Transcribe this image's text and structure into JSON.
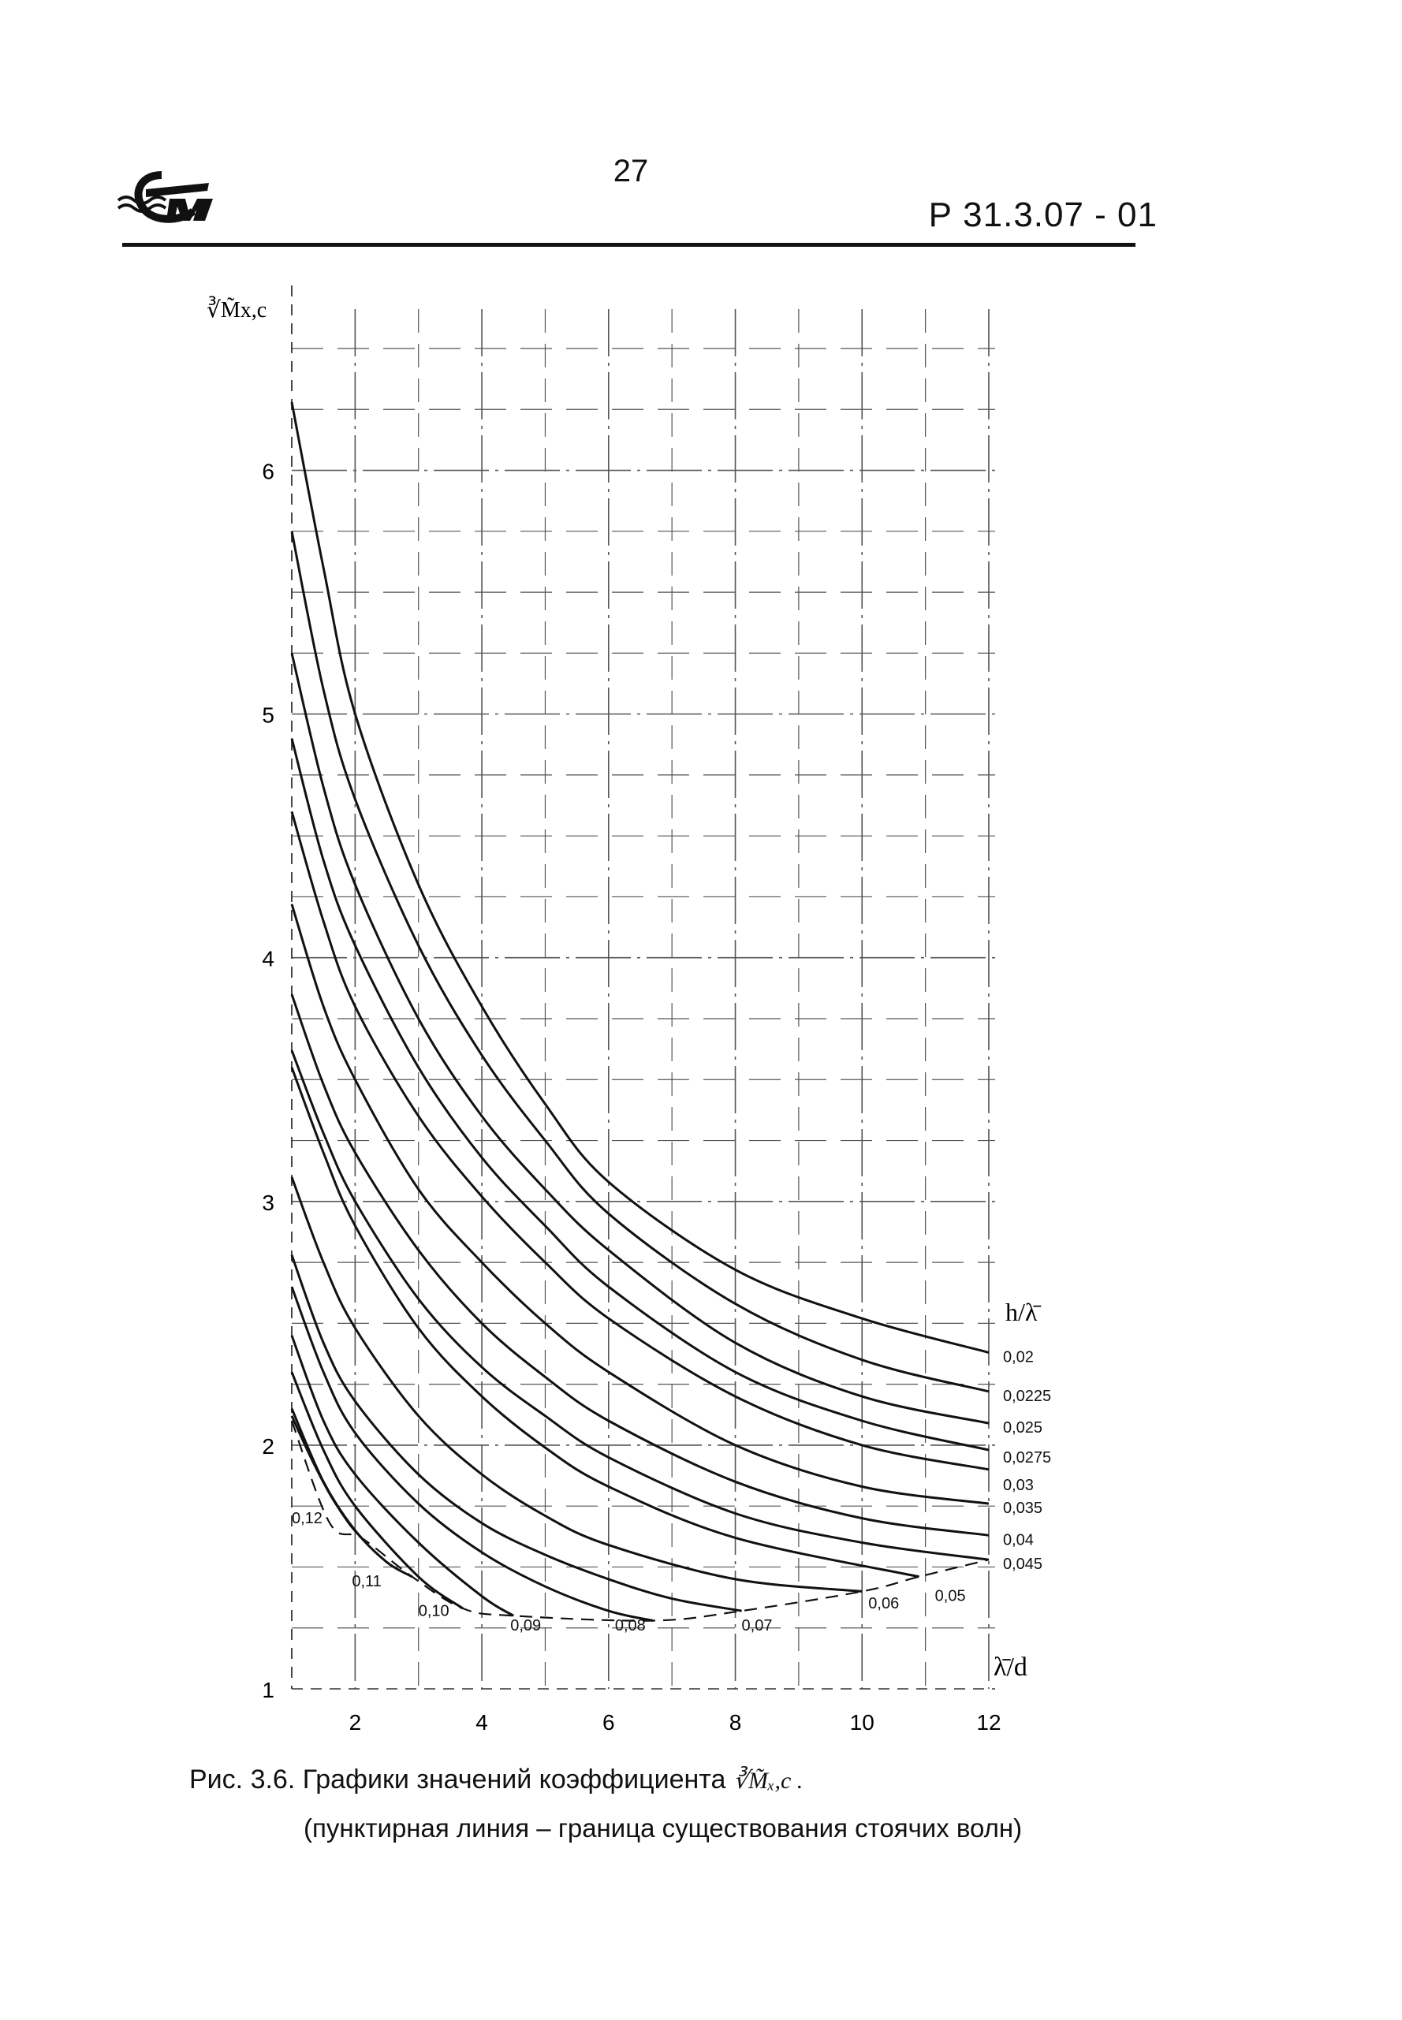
{
  "header": {
    "page_number": "27",
    "doc_code": "Р  31.3.07 - 01",
    "logo_icon": "organization-logo-icon"
  },
  "caption": {
    "line1": "Рис. 3.6. Графики значений коэффициента",
    "line1_math": "∛M̃ₓ,c .",
    "line2": "(пунктирная линия – граница существования стоячих волн)"
  },
  "chart_data": {
    "type": "line",
    "ylabel": "∛M̃x,c",
    "xlabel": "λ̄/d",
    "legend_title": "h/λ̄",
    "xlim": [
      1,
      12.1
    ],
    "ylim": [
      1,
      6.5
    ],
    "xticks": [
      2,
      4,
      6,
      8,
      10,
      12
    ],
    "yticks": [
      1,
      2,
      3,
      4,
      5,
      6
    ],
    "grid": true,
    "series": [
      {
        "name": "0,02",
        "x": [
          1,
          1.5,
          2,
          3,
          4,
          5,
          6,
          8,
          10,
          12
        ],
        "y": [
          6.28,
          5.6,
          5.0,
          4.3,
          3.8,
          3.4,
          3.08,
          2.72,
          2.52,
          2.38
        ]
      },
      {
        "name": "0,0225",
        "x": [
          1,
          1.5,
          2,
          3,
          4,
          5,
          6,
          8,
          10,
          12
        ],
        "y": [
          5.75,
          5.1,
          4.65,
          4.05,
          3.6,
          3.25,
          2.95,
          2.58,
          2.35,
          2.22
        ]
      },
      {
        "name": "0,025",
        "x": [
          1,
          1.5,
          2,
          3,
          4,
          5,
          6,
          8,
          10,
          12
        ],
        "y": [
          5.25,
          4.7,
          4.3,
          3.75,
          3.35,
          3.05,
          2.8,
          2.42,
          2.2,
          2.09
        ]
      },
      {
        "name": "0,0275",
        "x": [
          1,
          1.5,
          2,
          3,
          4,
          5,
          6,
          8,
          10,
          12
        ],
        "y": [
          4.9,
          4.4,
          4.05,
          3.55,
          3.18,
          2.9,
          2.65,
          2.3,
          2.1,
          1.98
        ]
      },
      {
        "name": "0,03",
        "x": [
          1,
          1.5,
          2,
          3,
          4,
          5,
          6,
          8,
          10,
          12
        ],
        "y": [
          4.6,
          4.15,
          3.8,
          3.35,
          3.02,
          2.75,
          2.52,
          2.2,
          2.0,
          1.9
        ]
      },
      {
        "name": "0,035",
        "x": [
          1,
          1.5,
          2,
          3,
          4,
          5,
          6,
          8,
          10,
          12
        ],
        "y": [
          4.22,
          3.8,
          3.5,
          3.05,
          2.75,
          2.5,
          2.3,
          2.0,
          1.83,
          1.76
        ]
      },
      {
        "name": "0,04",
        "x": [
          1,
          1.5,
          2,
          3,
          4,
          5,
          6,
          8,
          10,
          12
        ],
        "y": [
          3.85,
          3.48,
          3.2,
          2.8,
          2.5,
          2.28,
          2.1,
          1.85,
          1.7,
          1.63
        ]
      },
      {
        "name": "0,045",
        "x": [
          1,
          1.5,
          2,
          3,
          4,
          5,
          6,
          8,
          10,
          12
        ],
        "y": [
          3.62,
          3.28,
          3.0,
          2.6,
          2.32,
          2.12,
          1.95,
          1.72,
          1.6,
          1.53
        ]
      },
      {
        "name": "0,05",
        "x": [
          1,
          1.5,
          2,
          3,
          4,
          5,
          6,
          8,
          10.9
        ],
        "y": [
          3.55,
          3.2,
          2.9,
          2.48,
          2.2,
          1.99,
          1.83,
          1.62,
          1.46
        ]
      },
      {
        "name": "0,06",
        "x": [
          1,
          1.5,
          2,
          3,
          4,
          5,
          6,
          8,
          10
        ],
        "y": [
          3.1,
          2.75,
          2.48,
          2.12,
          1.88,
          1.71,
          1.59,
          1.45,
          1.4
        ]
      },
      {
        "name": "0,07",
        "x": [
          1,
          1.5,
          2,
          3,
          4,
          5,
          6,
          7,
          8.1
        ],
        "y": [
          2.78,
          2.42,
          2.18,
          1.88,
          1.68,
          1.55,
          1.45,
          1.37,
          1.32
        ]
      },
      {
        "name": "0,08",
        "x": [
          1,
          1.5,
          2,
          3,
          4,
          5,
          6,
          6.7
        ],
        "y": [
          2.65,
          2.3,
          2.05,
          1.76,
          1.56,
          1.42,
          1.32,
          1.28
        ]
      },
      {
        "name": "0,09",
        "x": [
          1,
          1.5,
          2,
          3,
          4,
          4.5
        ],
        "y": [
          2.45,
          2.1,
          1.88,
          1.6,
          1.38,
          1.3
        ]
      },
      {
        "name": "0,10",
        "x": [
          1,
          1.5,
          2,
          3,
          3.7
        ],
        "y": [
          2.3,
          1.98,
          1.75,
          1.46,
          1.33
        ]
      },
      {
        "name": "0,11",
        "x": [
          1,
          1.5,
          2,
          2.5,
          2.9
        ],
        "y": [
          2.15,
          1.85,
          1.65,
          1.52,
          1.46
        ]
      },
      {
        "name": "0,12",
        "x": [
          1,
          1.3,
          1.6,
          1.9,
          2.1
        ],
        "y": [
          2.12,
          1.95,
          1.8,
          1.68,
          1.62
        ]
      }
    ],
    "boundary": {
      "name": "граница существования стоячих волн",
      "style": "dashed",
      "x": [
        1,
        1.6,
        2.1,
        2.9,
        3.7,
        4.5,
        6.7,
        8.1,
        10,
        10.9,
        12
      ],
      "y": [
        2.1,
        1.68,
        1.62,
        1.46,
        1.33,
        1.3,
        1.28,
        1.32,
        1.4,
        1.46,
        1.53
      ]
    }
  }
}
